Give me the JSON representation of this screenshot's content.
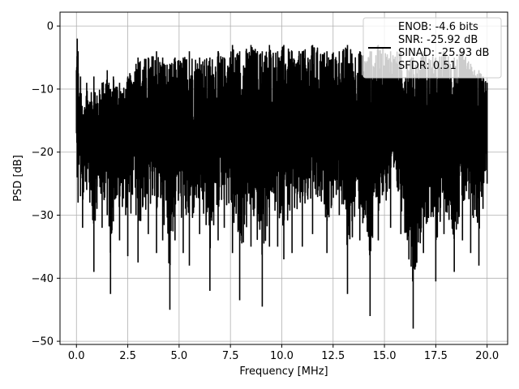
{
  "chart_data": {
    "type": "line",
    "xlabel": "Frequency [MHz]",
    "ylabel": "PSD [dB]",
    "xlim": [
      -0.8,
      21.0
    ],
    "ylim": [
      -50.5,
      2.2
    ],
    "xticks": [
      0.0,
      2.5,
      5.0,
      7.5,
      10.0,
      12.5,
      15.0,
      17.5,
      20.0
    ],
    "xtick_labels": [
      "0.0",
      "2.5",
      "5.0",
      "7.5",
      "10.0",
      "12.5",
      "15.0",
      "17.5",
      "20.0"
    ],
    "yticks": [
      0,
      -10,
      -20,
      -30,
      -40,
      -50
    ],
    "ytick_labels": [
      "0",
      "−10",
      "−20",
      "−30",
      "−40",
      "−50"
    ],
    "grid": true,
    "legend_position": "top-right",
    "legend": [
      "ENOB: -4.6 bits",
      "SNR: -25.92 dB",
      "SINAD: -25.93 dB",
      "SFDR: 0.51"
    ],
    "line_color": "#000000",
    "series": [
      {
        "x": [
          0.0,
          0.04,
          0.08,
          0.12,
          0.2,
          0.3,
          0.5,
          0.65,
          0.85,
          1.0,
          1.25,
          1.5,
          1.66,
          1.8,
          2.1,
          2.4,
          2.5,
          2.9,
          3.0,
          3.5,
          3.9,
          4.2,
          4.55,
          4.8,
          5.2,
          5.5,
          6.0,
          6.5,
          6.9,
          7.2,
          7.6,
          7.95,
          8.5,
          9.05,
          9.4,
          9.8,
          10.1,
          10.5,
          11.0,
          11.5,
          12.2,
          12.8,
          13.2,
          13.8,
          14.3,
          14.7,
          15.3,
          15.8,
          16.4,
          16.9,
          17.5,
          17.9,
          18.4,
          18.8,
          19.2,
          19.6,
          19.8,
          20.0
        ],
        "upper": [
          -7,
          -2,
          -4,
          -12,
          -8,
          -14,
          -9,
          -12,
          -8,
          -11,
          -9,
          -7,
          -10,
          -8,
          -9,
          -10,
          -8,
          -6,
          -5,
          -5,
          -4,
          -5,
          -6,
          -5,
          -5,
          -4,
          -5,
          -5,
          -4,
          -5,
          -3,
          -4,
          -3,
          -4,
          -3,
          -4,
          -3,
          -4,
          -4,
          -3,
          -4,
          -4,
          -3,
          -4,
          -4,
          -3,
          -4,
          -4,
          -5,
          -4,
          -5,
          -4,
          -5,
          -4,
          -6,
          -7,
          -8,
          -9
        ],
        "lower": [
          -17,
          -24,
          -28,
          -22,
          -27,
          -32,
          -26,
          -28,
          -39,
          -29,
          -32,
          -30,
          -42.5,
          -31,
          -34,
          -30,
          -36.5,
          -30,
          -37.5,
          -33,
          -36,
          -34,
          -45,
          -34,
          -36,
          -38,
          -33,
          -42,
          -34,
          -32,
          -36,
          -43.5,
          -35,
          -44.5,
          -35,
          -35,
          -37,
          -36,
          -35,
          -33,
          -36,
          -30,
          -42.5,
          -34,
          -46,
          -34,
          -32,
          -33,
          -48,
          -36,
          -40.5,
          -33,
          -39,
          -34,
          -36,
          -38,
          -29,
          -25
        ]
      }
    ]
  }
}
